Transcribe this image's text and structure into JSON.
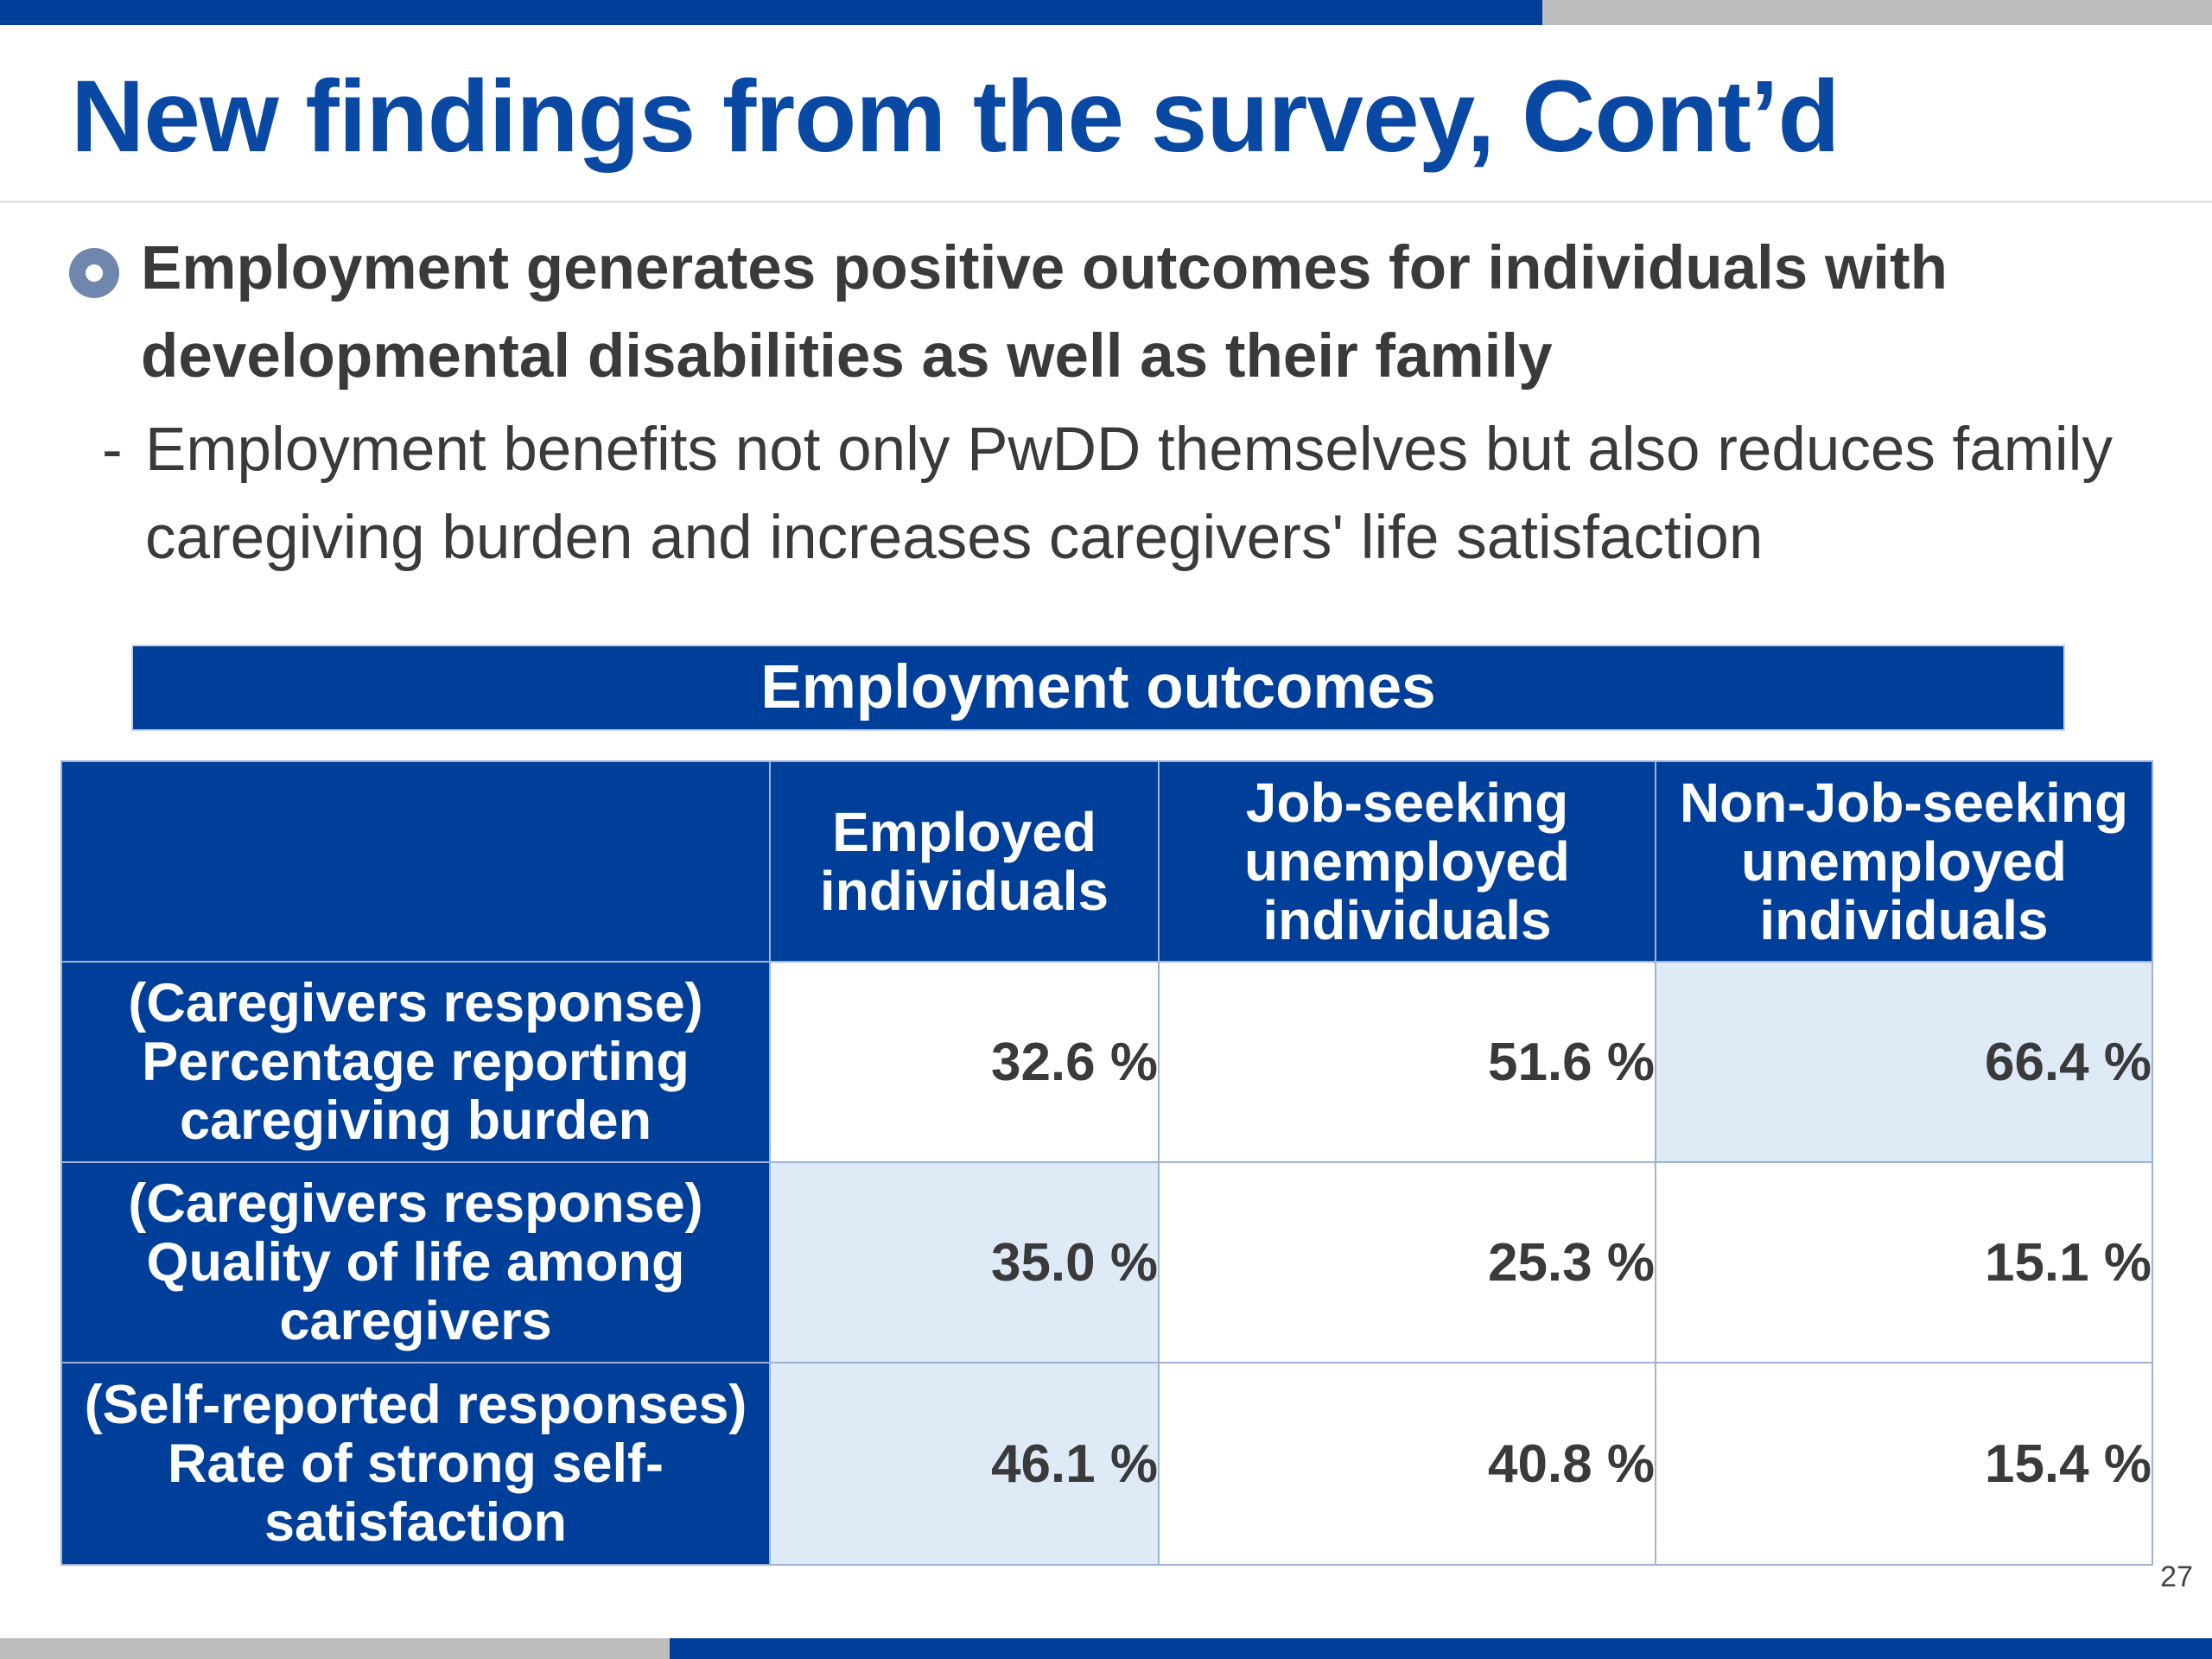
{
  "slide": {
    "title": "New findings from the survey, Cont’d",
    "bullet": "Employment generates positive outcomes for individuals with developmental disabilities as well as their family",
    "sub_dash": "-",
    "sub_text": "Employment benefits not only PwDD themselves but also reduces family caregiving burden and increases caregivers' life satisfaction",
    "page_number": "27"
  },
  "table": {
    "caption": "Employment outcomes",
    "columns": [
      "Employed individuals",
      "Job-seeking unemployed individuals",
      "Non-Job-seeking unemployed individuals"
    ],
    "rows": [
      {
        "label_line1": "(Caregivers response)",
        "label_line2": "Percentage reporting caregiving burden",
        "values": [
          "32.6 %",
          "51.6 %",
          "66.4 %"
        ]
      },
      {
        "label_line1": "(Caregivers response)",
        "label_line2": "Quality of life among caregivers",
        "values": [
          "35.0 %",
          "25.3 %",
          "15.1 %"
        ]
      },
      {
        "label_line1": "(Self-reported responses)",
        "label_line2": "Rate of strong self-satisfaction",
        "values": [
          "46.1 %",
          "40.8 %",
          "15.4 %"
        ]
      }
    ]
  },
  "colors": {
    "brand_blue": "#003f99",
    "title_blue": "#0a49a3",
    "highlight_cell": "#deeaf6",
    "bar_gray": "#bdbdbd"
  }
}
